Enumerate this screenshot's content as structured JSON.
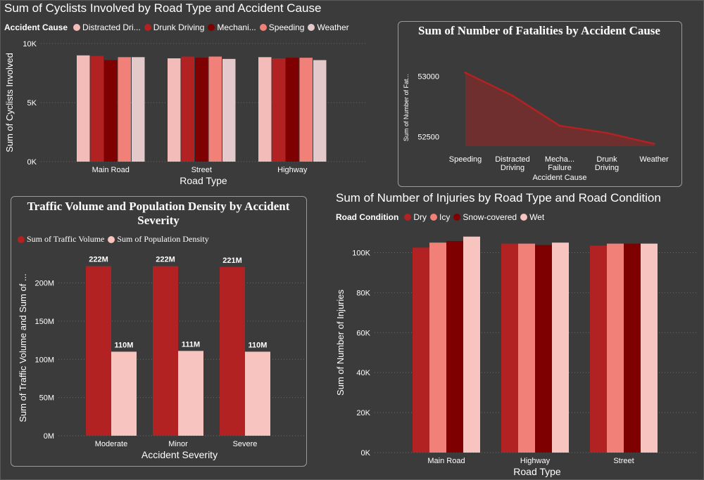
{
  "chart_data": [
    {
      "type": "bar",
      "title": "Sum of Cyclists Involved by Road Type and Accident Cause",
      "legend_title": "Accident Cause",
      "legend": [
        "Distracted Dri...",
        "Drunk Driving",
        "Mechani...",
        "Speeding",
        "Weather"
      ],
      "xlabel": "Road Type",
      "ylabel": "Sum of Cyclists Involved",
      "categories": [
        "Main Road",
        "Street",
        "Highway"
      ],
      "yticks": [
        "0K",
        "5K",
        "10K"
      ],
      "ylim": [
        0,
        10000
      ],
      "colors": [
        "#f4bcb8",
        "#b22222",
        "#7f0000",
        "#f08078",
        "#e3c9c9"
      ],
      "series": [
        {
          "name": "Distracted Dri...",
          "values": [
            9000,
            8750,
            8850
          ]
        },
        {
          "name": "Drunk Driving",
          "values": [
            8950,
            8900,
            8750
          ]
        },
        {
          "name": "Mechani...",
          "values": [
            8600,
            8800,
            8800
          ]
        },
        {
          "name": "Speeding",
          "values": [
            8850,
            8900,
            8800
          ]
        },
        {
          "name": "Weather",
          "values": [
            8850,
            8700,
            8600
          ]
        }
      ]
    },
    {
      "type": "area",
      "title": "Sum of Number of Fatalities by Accident Cause",
      "xlabel": "Accident Cause",
      "ylabel": "Sum of Number of Fat...",
      "categories": [
        "Speeding",
        "Distracted Driving",
        "Mecha... Failure",
        "Drunk Driving",
        "Weather"
      ],
      "category_lines": [
        [
          "Speeding"
        ],
        [
          "Distracted",
          "Driving"
        ],
        [
          "Mecha...",
          "Failure"
        ],
        [
          "Drunk",
          "Driving"
        ],
        [
          "Weather"
        ]
      ],
      "values": [
        53030,
        52840,
        52590,
        52530,
        52440
      ],
      "yticks": [
        "52500",
        "53000"
      ],
      "ylim": [
        52420,
        53120
      ],
      "colors": [
        "#b22222"
      ]
    },
    {
      "type": "bar",
      "title": "Traffic Volume and Population Density by Accident Severity",
      "xlabel": "Accident Severity",
      "ylabel": "Sum of Traffic Volume and Sum of ...",
      "categories": [
        "Moderate",
        "Minor",
        "Severe"
      ],
      "yticks": [
        "0M",
        "50M",
        "100M",
        "150M",
        "200M"
      ],
      "ylim": [
        0,
        230000000
      ],
      "colors": [
        "#b22222",
        "#f8c4c0"
      ],
      "series": [
        {
          "name": "Sum of Traffic Volume",
          "values": [
            222000000,
            222000000,
            221000000
          ],
          "labels": [
            "222M",
            "222M",
            "221M"
          ]
        },
        {
          "name": "Sum of Population Density",
          "values": [
            110000000,
            111000000,
            110000000
          ],
          "labels": [
            "110M",
            "111M",
            "110M"
          ]
        }
      ]
    },
    {
      "type": "bar",
      "title": "Sum of Number of Injuries by Road Type and Road Condition",
      "legend_title": "Road Condition",
      "legend": [
        "Dry",
        "Icy",
        "Snow-covered",
        "Wet"
      ],
      "xlabel": "Road Type",
      "ylabel": "Sum of Number of Injuries",
      "categories": [
        "Main Road",
        "Highway",
        "Street"
      ],
      "yticks": [
        "0K",
        "20K",
        "40K",
        "60K",
        "80K",
        "100K"
      ],
      "ylim": [
        0,
        110000
      ],
      "colors": [
        "#b22222",
        "#f08078",
        "#7f0000",
        "#f8c4c0"
      ],
      "series": [
        {
          "name": "Dry",
          "values": [
            102500,
            104500,
            103500
          ]
        },
        {
          "name": "Icy",
          "values": [
            105000,
            104500,
            104500
          ]
        },
        {
          "name": "Snow-covered",
          "values": [
            105800,
            103800,
            104500
          ]
        },
        {
          "name": "Wet",
          "values": [
            108000,
            105000,
            104500
          ]
        }
      ]
    }
  ]
}
